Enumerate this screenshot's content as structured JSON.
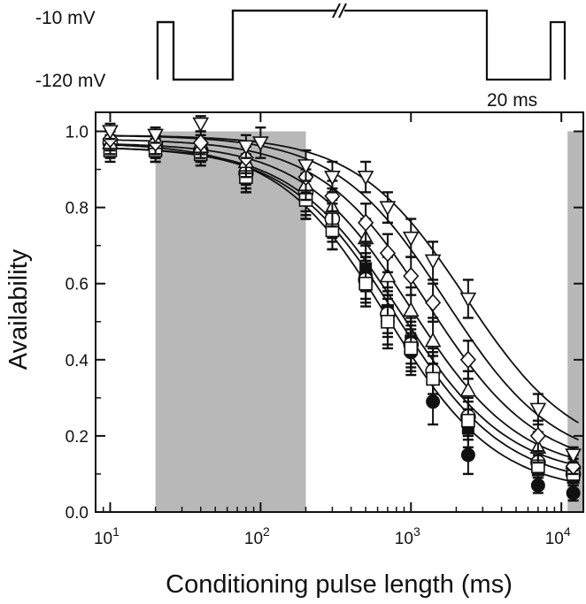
{
  "chart_data": {
    "type": "scatter",
    "title": "",
    "xlabel": "Conditioning pulse length (ms)",
    "ylabel": "Availability",
    "xscale": "log",
    "xlim": [
      8,
      14000
    ],
    "ylim": [
      0,
      1.05
    ],
    "x_ticks": [
      {
        "value": 10,
        "base": "10",
        "exp": "1"
      },
      {
        "value": 100,
        "base": "10",
        "exp": "2"
      },
      {
        "value": 1000,
        "base": "10",
        "exp": "3"
      },
      {
        "value": 10000,
        "base": "10",
        "exp": "4"
      }
    ],
    "y_ticks": [
      "0.0",
      "0.2",
      "0.4",
      "0.6",
      "0.8",
      "1.0"
    ],
    "shaded_regions": [
      {
        "x_from": 20,
        "x_to": 200
      },
      {
        "x_from": 11000,
        "x_to": 14000
      }
    ],
    "protocol": {
      "voltage_high_label": "-10 mV",
      "voltage_low_label": "-120 mV",
      "scale_label": "20 ms"
    },
    "series": [
      {
        "name": "filled-circle",
        "marker": "filled-circle",
        "x": [
          10,
          20,
          40,
          80,
          200,
          300,
          500,
          700,
          1000,
          1400,
          2400,
          7000,
          12000
        ],
        "y": [
          0.97,
          0.96,
          0.95,
          0.88,
          0.82,
          0.75,
          0.62,
          0.5,
          0.42,
          0.29,
          0.15,
          0.07,
          0.05
        ],
        "errors": [
          0.03,
          0.03,
          0.03,
          0.04,
          0.05,
          0.06,
          0.06,
          0.07,
          0.06,
          0.06,
          0.05,
          0.02,
          0.02
        ]
      },
      {
        "name": "filled-square",
        "marker": "filled-square",
        "x": [
          10,
          20,
          40,
          80,
          200,
          300,
          500,
          700,
          1000,
          1400,
          2400,
          7000,
          12000
        ],
        "y": [
          0.96,
          0.95,
          0.95,
          0.9,
          0.83,
          0.76,
          0.64,
          0.53,
          0.45,
          0.36,
          0.22,
          0.11,
          0.09
        ],
        "errors": [
          0.03,
          0.03,
          0.03,
          0.04,
          0.05,
          0.05,
          0.06,
          0.06,
          0.06,
          0.06,
          0.05,
          0.03,
          0.02
        ]
      },
      {
        "name": "open-circle",
        "marker": "open-circle",
        "x": [
          10,
          20,
          40,
          80,
          200,
          300,
          500,
          700,
          1000,
          1400,
          2400,
          7000,
          12000
        ],
        "y": [
          0.97,
          0.96,
          0.95,
          0.89,
          0.84,
          0.77,
          0.61,
          0.52,
          0.44,
          0.37,
          0.25,
          0.13,
          0.1
        ],
        "errors": [
          0.03,
          0.03,
          0.03,
          0.04,
          0.05,
          0.05,
          0.06,
          0.06,
          0.06,
          0.06,
          0.05,
          0.03,
          0.02
        ]
      },
      {
        "name": "open-square",
        "marker": "open-square",
        "x": [
          10,
          20,
          40,
          80,
          200,
          300,
          500,
          700,
          1000,
          1400,
          2400,
          7000,
          12000
        ],
        "y": [
          0.95,
          0.95,
          0.94,
          0.88,
          0.82,
          0.74,
          0.6,
          0.5,
          0.43,
          0.35,
          0.24,
          0.12,
          0.1
        ],
        "errors": [
          0.03,
          0.03,
          0.03,
          0.04,
          0.05,
          0.05,
          0.06,
          0.06,
          0.06,
          0.06,
          0.05,
          0.03,
          0.02
        ]
      },
      {
        "name": "open-triangle-up",
        "marker": "open-triangle-up",
        "x": [
          10,
          20,
          40,
          80,
          200,
          300,
          500,
          700,
          1000,
          1400,
          2400,
          7000,
          12000
        ],
        "y": [
          0.97,
          0.97,
          0.96,
          0.92,
          0.86,
          0.8,
          0.72,
          0.62,
          0.53,
          0.45,
          0.32,
          0.17,
          0.13
        ],
        "errors": [
          0.03,
          0.03,
          0.03,
          0.04,
          0.04,
          0.05,
          0.05,
          0.05,
          0.06,
          0.06,
          0.05,
          0.04,
          0.02
        ]
      },
      {
        "name": "open-diamond",
        "marker": "open-diamond",
        "x": [
          10,
          20,
          40,
          80,
          200,
          300,
          500,
          700,
          1000,
          1400,
          2400,
          7000,
          12000
        ],
        "y": [
          0.98,
          0.97,
          0.97,
          0.93,
          0.88,
          0.83,
          0.76,
          0.68,
          0.62,
          0.55,
          0.4,
          0.2,
          0.12
        ],
        "errors": [
          0.03,
          0.03,
          0.03,
          0.04,
          0.04,
          0.04,
          0.05,
          0.05,
          0.05,
          0.05,
          0.05,
          0.04,
          0.02
        ]
      },
      {
        "name": "open-triangle-down",
        "marker": "open-triangle-down",
        "x": [
          10,
          20,
          40,
          80,
          100,
          200,
          300,
          500,
          700,
          1000,
          1400,
          2400,
          7000,
          12000
        ],
        "y": [
          1.0,
          0.99,
          1.02,
          0.96,
          0.97,
          0.91,
          0.88,
          0.88,
          0.8,
          0.72,
          0.66,
          0.56,
          0.27,
          0.15
        ],
        "errors": [
          0.02,
          0.02,
          0.02,
          0.03,
          0.04,
          0.04,
          0.04,
          0.04,
          0.04,
          0.05,
          0.05,
          0.05,
          0.04,
          0.02
        ]
      }
    ],
    "fits": [
      {
        "x0": 700,
        "k": 1.2,
        "a": 0.97,
        "b": 0.05
      },
      {
        "x0": 800,
        "k": 1.2,
        "a": 0.96,
        "b": 0.07
      },
      {
        "x0": 850,
        "k": 1.2,
        "a": 0.96,
        "b": 0.09
      },
      {
        "x0": 1000,
        "k": 1.2,
        "a": 0.97,
        "b": 0.1
      },
      {
        "x0": 1300,
        "k": 1.2,
        "a": 0.98,
        "b": 0.11
      },
      {
        "x0": 1700,
        "k": 1.2,
        "a": 0.99,
        "b": 0.12
      },
      {
        "x0": 2300,
        "k": 1.2,
        "a": 0.99,
        "b": 0.14
      }
    ]
  }
}
